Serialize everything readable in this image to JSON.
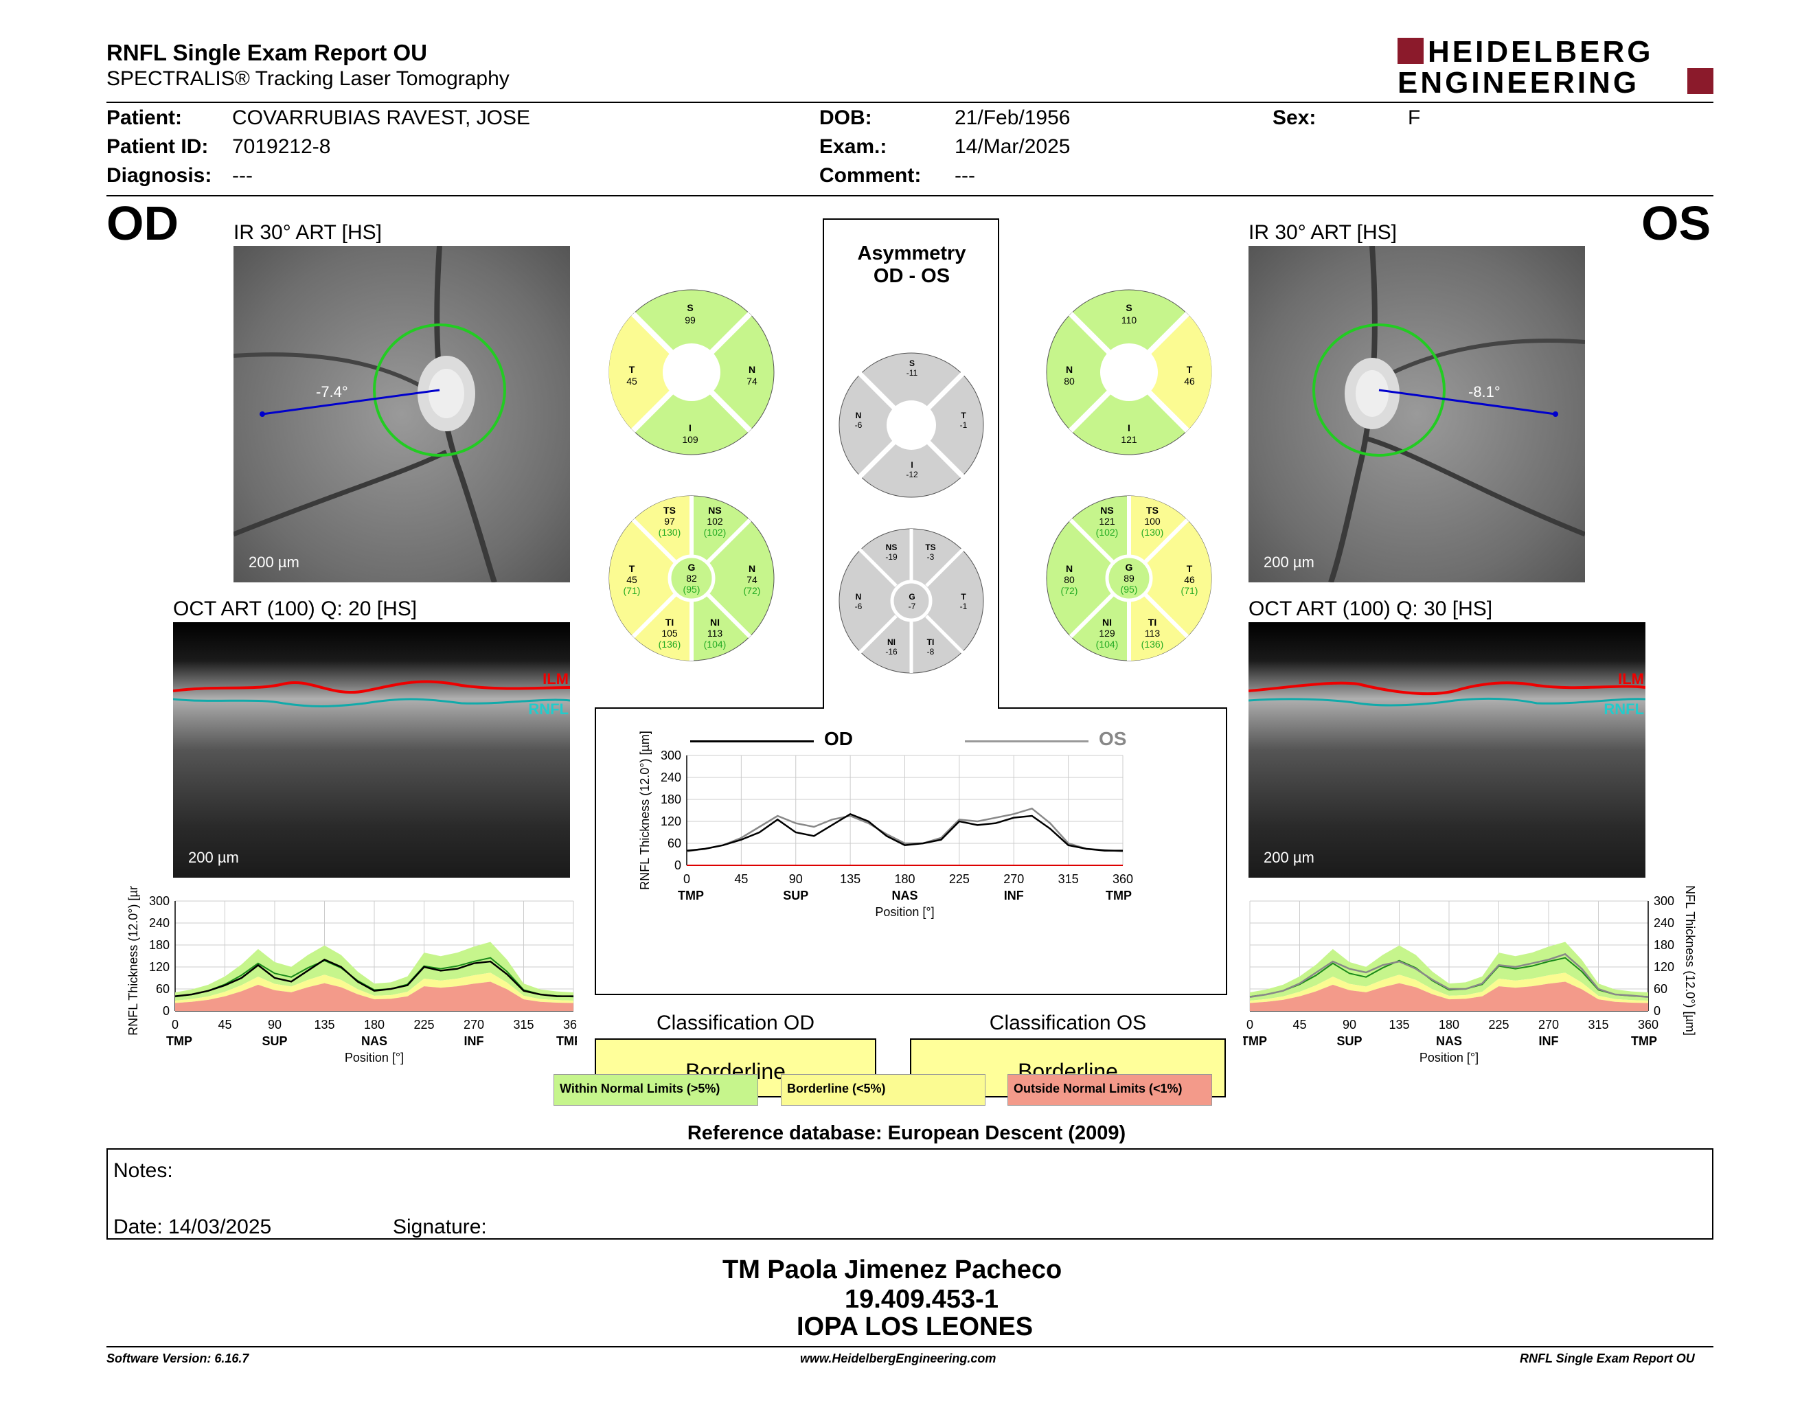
{
  "header": {
    "title": "RNFL Single Exam Report OU",
    "subtitle": "SPECTRALIS® Tracking Laser Tomography",
    "logo_line1": "HEIDELBERG",
    "logo_line2": "ENGINEERING"
  },
  "patient": {
    "patient_label": "Patient:",
    "patient_value": "COVARRUBIAS RAVEST, JOSE",
    "id_label": "Patient ID:",
    "id_value": "7019212-8",
    "diag_label": "Diagnosis:",
    "diag_value": "---",
    "dob_label": "DOB:",
    "dob_value": "21/Feb/1956",
    "exam_label": "Exam.:",
    "exam_value": "14/Mar/2025",
    "comment_label": "Comment:",
    "comment_value": "---",
    "sex_label": "Sex:",
    "sex_value": "F"
  },
  "od": {
    "eye": "OD",
    "ir_label": "IR 30° ART [HS]",
    "angle": "-7.4°",
    "fundus_scale": "200 µm",
    "oct_label": "OCT ART (100) Q: 20 [HS]",
    "oct_scale": "200 µm",
    "ilm": "ILM",
    "rnfl": "RNFL",
    "sectors": {
      "S": "99",
      "T": "45",
      "N": "74",
      "I": "109"
    },
    "sectors6": {
      "TS": [
        "97",
        "(130)"
      ],
      "NS": [
        "102",
        "(102)"
      ],
      "T": [
        "45",
        "(71)"
      ],
      "G": [
        "82",
        "(95)"
      ],
      "N": [
        "74",
        "(72)"
      ],
      "TI": [
        "105",
        "(136)"
      ],
      "NI": [
        "113",
        "(104)"
      ]
    },
    "classification_title": "Classification OD",
    "classification_value": "Borderline"
  },
  "os": {
    "eye": "OS",
    "ir_label": "IR 30° ART [HS]",
    "angle": "-8.1°",
    "fundus_scale": "200 µm",
    "oct_label": "OCT ART (100) Q: 30 [HS]",
    "oct_scale": "200 µm",
    "ilm": "ILM",
    "rnfl": "RNFL",
    "sectors": {
      "S": "110",
      "N": "80",
      "T": "46",
      "I": "121"
    },
    "sectors6": {
      "NS": [
        "121",
        "(102)"
      ],
      "TS": [
        "100",
        "(130)"
      ],
      "N": [
        "80",
        "(72)"
      ],
      "G": [
        "89",
        "(95)"
      ],
      "T": [
        "46",
        "(71)"
      ],
      "NI": [
        "129",
        "(104)"
      ],
      "TI": [
        "113",
        "(136)"
      ]
    },
    "classification_title": "Classification OS",
    "classification_value": "Borderline"
  },
  "asym": {
    "title1": "Asymmetry",
    "title2": "OD - OS",
    "sectors": {
      "S": "-11",
      "N": "-6",
      "T": "-1",
      "I": "-12"
    },
    "sectors6": {
      "NS": "-19",
      "TS": "-3",
      "N": "-6",
      "G": "-7",
      "T": "-1",
      "NI": "-16",
      "TI": "-8"
    },
    "legend_od": "OD",
    "legend_os": "OS"
  },
  "legend": {
    "within": "Within Normal Limits (>5%)",
    "borderline": "Borderline (<5%)",
    "outside": "Outside Normal Limits (<1%)"
  },
  "reference": "Reference database: European Descent (2009)",
  "notes": {
    "notes_label": "Notes:",
    "date_label": "Date: 14/03/2025",
    "signature_label": "Signature:"
  },
  "signer": {
    "name": "TM Paola Jimenez Pacheco",
    "id": "19.409.453-1",
    "org": "IOPA LOS LEONES"
  },
  "footer": {
    "left": "Software Version: 6.16.7",
    "center": "www.HeidelbergEngineering.com",
    "right": "RNFL Single Exam Report OU"
  },
  "colors": {
    "green": "#c6f58c",
    "yellow": "#fbfb92",
    "red": "#f39a8a",
    "gray": "#d0d0d0",
    "logo_red": "#8b1a2b"
  },
  "chart_data": [
    {
      "type": "line",
      "title": "",
      "xlabel": "Position [°]",
      "ylabel": "RNFL Thickness (12.0°) [µm]",
      "xlim": [
        0,
        360
      ],
      "ylim": [
        0,
        300
      ],
      "xticks": [
        "0",
        "45",
        "90",
        "135",
        "180",
        "225",
        "270",
        "315",
        "360"
      ],
      "yticks": [
        "0",
        "60",
        "120",
        "180",
        "240",
        "300"
      ],
      "region_labels": [
        "TMP",
        "SUP",
        "NAS",
        "INF",
        "TMP"
      ],
      "x": [
        0,
        15,
        30,
        45,
        60,
        75,
        90,
        105,
        120,
        135,
        150,
        165,
        180,
        195,
        210,
        225,
        240,
        255,
        270,
        285,
        300,
        315,
        330,
        345,
        360
      ],
      "series": [
        {
          "name": "OD",
          "values": [
            40,
            45,
            55,
            70,
            90,
            125,
            90,
            80,
            110,
            140,
            120,
            80,
            55,
            60,
            70,
            120,
            110,
            115,
            130,
            135,
            100,
            55,
            45,
            40,
            40
          ]
        },
        {
          "name": "OS",
          "values": [
            38,
            45,
            55,
            75,
            105,
            135,
            115,
            105,
            125,
            135,
            115,
            85,
            60,
            60,
            75,
            125,
            120,
            130,
            140,
            155,
            115,
            60,
            45,
            42,
            38
          ]
        }
      ]
    }
  ]
}
